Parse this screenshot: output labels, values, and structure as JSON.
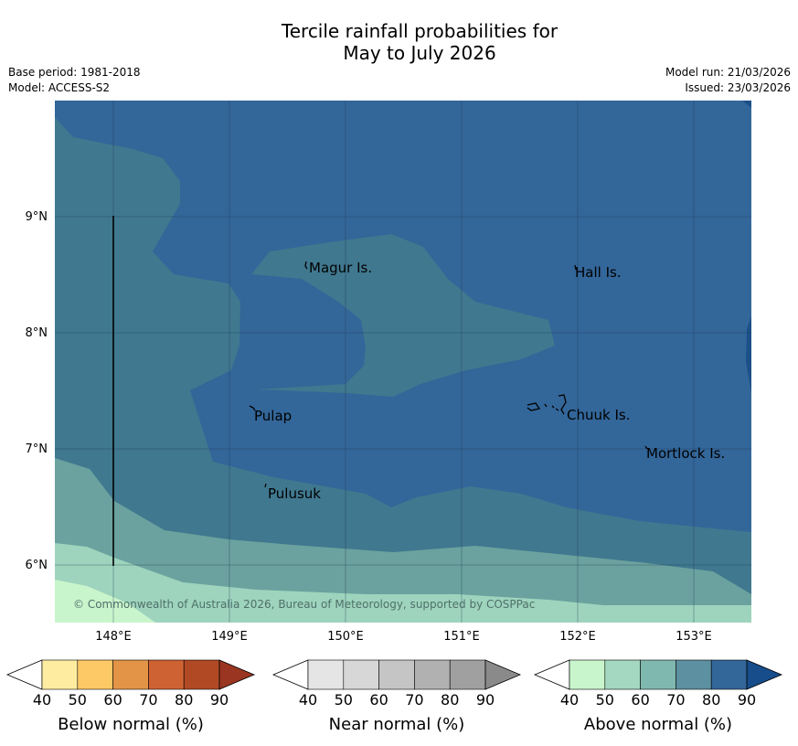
{
  "title": {
    "line1": "Tercile rainfall probabilities for",
    "line2": "May to July 2026"
  },
  "meta_left": {
    "base_period": "Base period: 1981-2018",
    "model": "Model: ACCESS-S2"
  },
  "meta_right": {
    "model_run": "Model run: 21/03/2026",
    "issued": "Issued: 23/03/2026"
  },
  "map": {
    "lat_labels": [
      "9°N",
      "8°N",
      "7°N",
      "6°N"
    ],
    "lon_labels": [
      "148°E",
      "149°E",
      "150°E",
      "151°E",
      "152°E",
      "153°E"
    ],
    "places": [
      {
        "name": "Magur Is."
      },
      {
        "name": "Hall Is."
      },
      {
        "name": "Pulap"
      },
      {
        "name": "Chuuk Is."
      },
      {
        "name": "Mortlock Is."
      },
      {
        "name": "Pulusuk"
      }
    ],
    "copyright": "© Commonwealth of Australia 2026, Bureau of Meteorology, supported by COSPPac"
  },
  "colorbars": [
    {
      "label": "Below normal (%)",
      "ticks": [
        "40",
        "50",
        "60",
        "70",
        "80",
        "90"
      ],
      "colors": [
        "#ffffff",
        "#feeda0",
        "#fdc966",
        "#e39446",
        "#cf6233",
        "#b14a24",
        "#993520"
      ]
    },
    {
      "label": "Near normal (%)",
      "ticks": [
        "40",
        "50",
        "60",
        "70",
        "80",
        "90"
      ],
      "colors": [
        "#ffffff",
        "#e5e5e5",
        "#d7d7d7",
        "#c5c5c5",
        "#b1b1b1",
        "#a0a0a0",
        "#8a8a8a"
      ]
    },
    {
      "label": "Above normal (%)",
      "ticks": [
        "40",
        "50",
        "60",
        "70",
        "80",
        "90"
      ],
      "colors": [
        "#ffffff",
        "#c9f5cc",
        "#a4d8c0",
        "#7fb8af",
        "#5d90a0",
        "#336699",
        "#164d8a"
      ]
    }
  ]
}
